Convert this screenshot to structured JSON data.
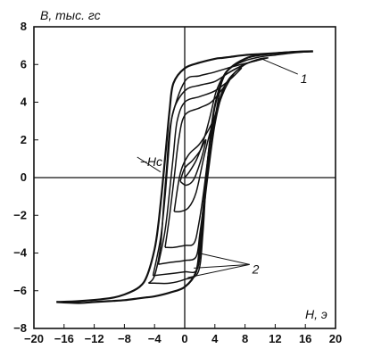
{
  "chart_data": {
    "type": "line",
    "title": "",
    "xlabel": "H, э",
    "ylabel": "B, тыс. гс",
    "xlim": [
      -20,
      20
    ],
    "ylim": [
      -8,
      8
    ],
    "x_ticks": [
      -20,
      -16,
      -12,
      -8,
      -4,
      0,
      4,
      8,
      12,
      16,
      20
    ],
    "y_ticks": [
      -8,
      -6,
      -4,
      -2,
      0,
      2,
      4,
      6,
      8
    ],
    "x_tick_labels": [
      "−20",
      "−16",
      "−12",
      "−8",
      "−4",
      "0",
      "4",
      "8",
      "12",
      "16",
      "20"
    ],
    "y_tick_labels": [
      "−8",
      "−6",
      "−4",
      "−2",
      "0",
      "2",
      "4",
      "6",
      "8"
    ],
    "grid": false,
    "series": [
      {
        "x": [
          -17,
          -14,
          -10,
          -8,
          -6,
          -5,
          -4,
          -3.5,
          -3,
          -2.5,
          -2,
          -1.5,
          0,
          2,
          4,
          5,
          6,
          8,
          10,
          12,
          14,
          17
        ],
        "y": [
          -6.6,
          -6.55,
          -6.4,
          -6.2,
          -5.8,
          -5.2,
          -3.8,
          -2.5,
          -0.6,
          1.5,
          3.6,
          5.0,
          5.8,
          6.1,
          6.3,
          6.35,
          6.4,
          6.5,
          6.55,
          6.6,
          6.65,
          6.7
        ]
      },
      {
        "x": [
          17,
          14,
          10,
          8,
          6,
          5,
          4,
          3.5,
          3,
          2.5,
          2,
          1.5,
          0,
          -2,
          -4,
          -5,
          -6,
          -8,
          -10,
          -12,
          -14,
          -17
        ],
        "y": [
          6.7,
          6.65,
          6.5,
          6.3,
          5.8,
          5.2,
          3.8,
          2.5,
          0.6,
          -1.5,
          -3.6,
          -5.0,
          -5.8,
          -6.1,
          -6.3,
          -6.35,
          -6.4,
          -6.5,
          -6.55,
          -6.6,
          -6.65,
          -6.6
        ]
      },
      {
        "x": [
          -4.8,
          -4,
          -3.2,
          -2.8,
          -2.4,
          -1.8,
          0,
          2,
          4,
          6.5,
          8.5,
          10.5,
          11,
          10,
          8.5,
          6,
          5,
          4.2,
          3.2,
          2.8,
          2.4,
          1.8,
          0,
          -2,
          -4,
          -4.8
        ],
        "y": [
          -5.6,
          -5.2,
          -3.6,
          -1.5,
          0.5,
          3.0,
          5.1,
          5.4,
          5.6,
          5.9,
          6.1,
          6.3,
          6.35,
          6.3,
          6.1,
          5.6,
          5.2,
          3.6,
          1.5,
          -0.5,
          -3.0,
          -5.0,
          -5.4,
          -5.6,
          -5.6,
          -5.6
        ]
      },
      {
        "x": [
          -4.2,
          -3.2,
          -2.6,
          -2.2,
          -1.6,
          0,
          2,
          4,
          6,
          8.5,
          9.5,
          8,
          6,
          5,
          4,
          3.2,
          2.6,
          2.2,
          1.6,
          0,
          -2,
          -4.2
        ],
        "y": [
          -5.2,
          -3.2,
          -1.0,
          1.0,
          3.4,
          4.6,
          4.9,
          5.1,
          5.6,
          6.1,
          6.2,
          6.0,
          5.3,
          4.5,
          2.8,
          0.5,
          -1.5,
          -3.5,
          -4.9,
          -5.0,
          -5.1,
          -5.2
        ]
      },
      {
        "x": [
          -3.5,
          -2.6,
          -2.0,
          -1.5,
          -1.0,
          0,
          2,
          4,
          6,
          7.5,
          6.5,
          5,
          4,
          3.2,
          2.6,
          2.0,
          1.5,
          0,
          -2,
          -3.5
        ],
        "y": [
          -4.6,
          -2.8,
          -0.7,
          1.2,
          3.0,
          4.0,
          4.3,
          4.6,
          5.2,
          5.8,
          5.5,
          4.4,
          3.0,
          0.8,
          -1.2,
          -3.0,
          -4.2,
          -4.4,
          -4.5,
          -4.6
        ]
      },
      {
        "x": [
          -2.6,
          -2.0,
          -1.4,
          -0.8,
          0,
          2,
          3.5,
          5,
          6,
          5,
          4,
          3.2,
          2.5,
          1.8,
          1.2,
          0,
          -1.5,
          -2.6
        ],
        "y": [
          -3.7,
          -2.0,
          0.0,
          2.0,
          3.3,
          3.7,
          4.0,
          4.7,
          5.3,
          4.6,
          3.2,
          1.4,
          -0.8,
          -2.6,
          -3.5,
          -3.6,
          -3.7,
          -3.7
        ]
      },
      {
        "x": [
          -1.4,
          -0.6,
          0.5,
          2,
          3.5,
          4.5,
          3.5,
          2.5,
          1.5,
          0.5,
          -0.6,
          -1.4
        ],
        "y": [
          -1.8,
          0.2,
          1.2,
          1.8,
          2.8,
          3.8,
          2.6,
          1.0,
          -0.8,
          -1.6,
          -1.8,
          -1.8
        ]
      },
      {
        "x": [
          -0.6,
          0,
          1,
          2,
          2.8,
          2.2,
          1.2,
          0.2,
          -0.6
        ],
        "y": [
          -0.2,
          0.5,
          0.9,
          1.4,
          2.0,
          1.0,
          -0.1,
          -0.4,
          -0.2
        ]
      },
      {
        "x": [
          0,
          0.6,
          1.5,
          2.2,
          2.8,
          3.4,
          3.8,
          4.2,
          5,
          6,
          8,
          10,
          12,
          14,
          17
        ],
        "y": [
          0,
          0.3,
          0.9,
          1.6,
          2.4,
          3.3,
          4.0,
          4.6,
          5.3,
          5.8,
          6.2,
          6.4,
          6.5,
          6.6,
          6.7
        ]
      }
    ],
    "annotations": [
      {
        "text": "1",
        "x": 15,
        "y": 5.3,
        "arrow_to": [
          10.2,
          6.3
        ]
      },
      {
        "text": "−Hc",
        "x": -6.3,
        "y": 0.9,
        "arrow_to": [
          -3.2,
          0.3
        ]
      },
      {
        "text": "2",
        "x": 8.6,
        "y": -4.8,
        "arrow_to": [
          [
            1.8,
            -4.0
          ],
          [
            1.2,
            -4.8
          ],
          [
            0.4,
            -5.3
          ]
        ]
      }
    ]
  }
}
